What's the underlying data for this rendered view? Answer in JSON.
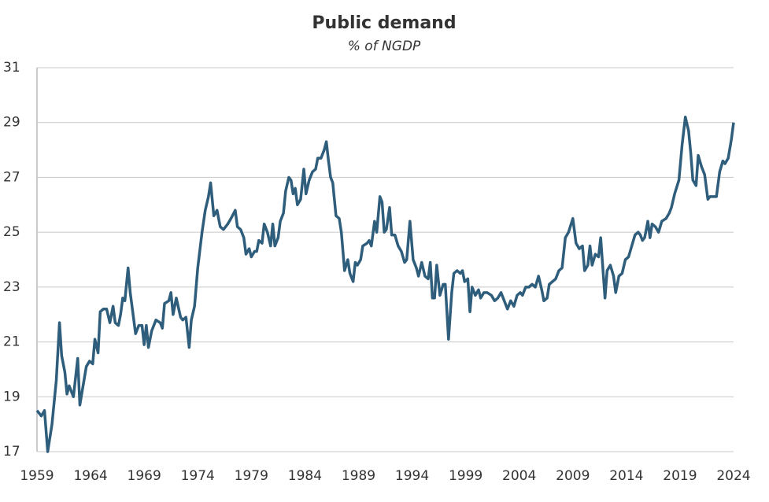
{
  "chart_data": {
    "type": "line",
    "title": "Public demand",
    "subtitle": "% of NGDP",
    "color": "#2f5d7c",
    "grid": true,
    "xlim": [
      1959,
      2024
    ],
    "xticks": [
      1959,
      1964,
      1969,
      1974,
      1979,
      1984,
      1989,
      1994,
      1999,
      2004,
      2009,
      2014,
      2019,
      2024
    ],
    "ylim": [
      17,
      31
    ],
    "yticks": [
      17,
      19,
      21,
      23,
      25,
      27,
      29,
      31
    ],
    "x": [
      1959.0,
      1959.4,
      1959.7,
      1960.0,
      1960.4,
      1960.8,
      1961.1,
      1961.3,
      1961.6,
      1961.8,
      1962.0,
      1962.4,
      1962.8,
      1963.0,
      1963.3,
      1963.6,
      1963.9,
      1964.2,
      1964.4,
      1964.7,
      1964.9,
      1965.2,
      1965.5,
      1965.8,
      1966.1,
      1966.3,
      1966.6,
      1966.8,
      1967.0,
      1967.2,
      1967.5,
      1967.7,
      1968.2,
      1968.5,
      1968.8,
      1969.0,
      1969.2,
      1969.4,
      1969.7,
      1970.1,
      1970.5,
      1970.7,
      1970.9,
      1971.3,
      1971.5,
      1971.7,
      1972.0,
      1972.4,
      1972.6,
      1972.9,
      1973.2,
      1973.4,
      1973.7,
      1974.0,
      1974.4,
      1974.7,
      1975.0,
      1975.2,
      1975.5,
      1975.8,
      1976.1,
      1976.4,
      1976.8,
      1977.1,
      1977.5,
      1977.7,
      1978.0,
      1978.3,
      1978.5,
      1978.8,
      1979.0,
      1979.3,
      1979.5,
      1979.7,
      1980.0,
      1980.2,
      1980.5,
      1980.8,
      1981.0,
      1981.2,
      1981.5,
      1981.7,
      1982.0,
      1982.2,
      1982.5,
      1982.7,
      1982.9,
      1983.1,
      1983.3,
      1983.6,
      1983.9,
      1984.1,
      1984.4,
      1984.7,
      1985.0,
      1985.2,
      1985.5,
      1985.8,
      1986.0,
      1986.2,
      1986.4,
      1986.6,
      1986.9,
      1987.2,
      1987.4,
      1987.7,
      1988.0,
      1988.2,
      1988.5,
      1988.7,
      1988.9,
      1989.2,
      1989.4,
      1989.8,
      1990.0,
      1990.2,
      1990.5,
      1990.7,
      1991.0,
      1991.2,
      1991.4,
      1991.6,
      1991.9,
      1992.1,
      1992.4,
      1992.7,
      1993.0,
      1993.3,
      1993.5,
      1993.8,
      1994.1,
      1994.4,
      1994.6,
      1994.9,
      1995.2,
      1995.5,
      1995.7,
      1995.9,
      1996.1,
      1996.3,
      1996.6,
      1996.9,
      1997.1,
      1997.4,
      1997.7,
      1997.9,
      1998.2,
      1998.5,
      1998.7,
      1998.9,
      1999.2,
      1999.4,
      1999.6,
      1999.9,
      2000.2,
      2000.4,
      2000.7,
      2001.0,
      2001.4,
      2001.7,
      2002.0,
      2002.3,
      2002.6,
      2002.9,
      2003.2,
      2003.5,
      2003.8,
      2004.1,
      2004.3,
      2004.6,
      2004.9,
      2005.2,
      2005.5,
      2005.8,
      2006.1,
      2006.3,
      2006.6,
      2006.8,
      2007.1,
      2007.4,
      2007.7,
      2008.0,
      2008.3,
      2008.6,
      2009.0,
      2009.3,
      2009.6,
      2009.9,
      2010.1,
      2010.4,
      2010.6,
      2010.8,
      2011.1,
      2011.4,
      2011.6,
      2012.0,
      2012.2,
      2012.5,
      2012.8,
      2013.0,
      2013.3,
      2013.6,
      2013.9,
      2014.2,
      2014.5,
      2014.8,
      2015.1,
      2015.3,
      2015.5,
      2015.7,
      2016.0,
      2016.2,
      2016.4,
      2016.7,
      2017.0,
      2017.3,
      2017.7,
      2018.0,
      2018.2,
      2018.5,
      2018.9,
      2019.2,
      2019.5,
      2019.8,
      2020.0,
      2020.2,
      2020.5,
      2020.7,
      2021.0,
      2021.3,
      2021.6,
      2021.8,
      2022.1,
      2022.4,
      2022.7,
      2023.0,
      2023.2,
      2023.5,
      2023.8,
      2024.0
    ],
    "values": [
      18.5,
      18.3,
      18.5,
      17.0,
      18.0,
      19.6,
      21.7,
      20.5,
      19.9,
      19.1,
      19.4,
      19.0,
      20.4,
      18.7,
      19.4,
      20.1,
      20.3,
      20.2,
      21.1,
      20.6,
      22.1,
      22.2,
      22.2,
      21.7,
      22.3,
      21.7,
      21.6,
      22.0,
      22.6,
      22.5,
      23.7,
      22.8,
      21.3,
      21.6,
      21.6,
      20.9,
      21.6,
      20.8,
      21.4,
      21.8,
      21.7,
      21.5,
      22.4,
      22.5,
      22.8,
      22.0,
      22.6,
      21.9,
      21.8,
      21.9,
      20.8,
      21.8,
      22.3,
      23.7,
      25.0,
      25.8,
      26.3,
      26.8,
      25.6,
      25.8,
      25.2,
      25.1,
      25.3,
      25.5,
      25.8,
      25.2,
      25.1,
      24.8,
      24.2,
      24.4,
      24.1,
      24.3,
      24.3,
      24.7,
      24.6,
      25.3,
      25.0,
      24.5,
      25.3,
      24.5,
      24.8,
      25.4,
      25.7,
      26.5,
      27.0,
      26.9,
      26.4,
      26.6,
      26.0,
      26.2,
      27.3,
      26.4,
      26.9,
      27.2,
      27.3,
      27.7,
      27.7,
      28.0,
      28.3,
      27.6,
      27.0,
      26.8,
      25.6,
      25.5,
      25.0,
      23.6,
      24.0,
      23.5,
      23.2,
      23.9,
      23.8,
      24.0,
      24.5,
      24.6,
      24.7,
      24.5,
      25.4,
      25.0,
      26.3,
      26.1,
      25.0,
      25.1,
      25.9,
      24.9,
      24.9,
      24.5,
      24.3,
      23.9,
      24.0,
      25.4,
      24.0,
      23.7,
      23.4,
      23.9,
      23.4,
      23.3,
      23.9,
      22.6,
      22.6,
      23.8,
      22.7,
      23.1,
      23.1,
      21.1,
      22.8,
      23.5,
      23.6,
      23.5,
      23.6,
      23.2,
      23.3,
      22.1,
      23.0,
      22.7,
      22.9,
      22.6,
      22.8,
      22.8,
      22.7,
      22.5,
      22.6,
      22.8,
      22.5,
      22.2,
      22.5,
      22.3,
      22.7,
      22.8,
      22.7,
      23.0,
      23.0,
      23.1,
      23.0,
      23.4,
      22.9,
      22.5,
      22.6,
      23.1,
      23.2,
      23.3,
      23.6,
      23.7,
      24.8,
      25.0,
      25.5,
      24.6,
      24.4,
      24.5,
      23.6,
      23.8,
      24.5,
      23.8,
      24.2,
      24.1,
      24.8,
      22.6,
      23.6,
      23.8,
      23.4,
      22.8,
      23.4,
      23.5,
      24.0,
      24.1,
      24.5,
      24.9,
      25.0,
      24.9,
      24.7,
      24.8,
      25.4,
      24.8,
      25.3,
      25.2,
      25.0,
      25.4,
      25.5,
      25.7,
      25.9,
      26.4,
      26.9,
      28.2,
      29.2,
      28.7,
      27.9,
      26.9,
      26.7,
      27.8,
      27.4,
      27.1,
      26.2,
      26.3,
      26.3,
      26.3,
      27.2,
      27.6,
      27.5,
      27.7,
      28.4,
      29.0
    ]
  }
}
